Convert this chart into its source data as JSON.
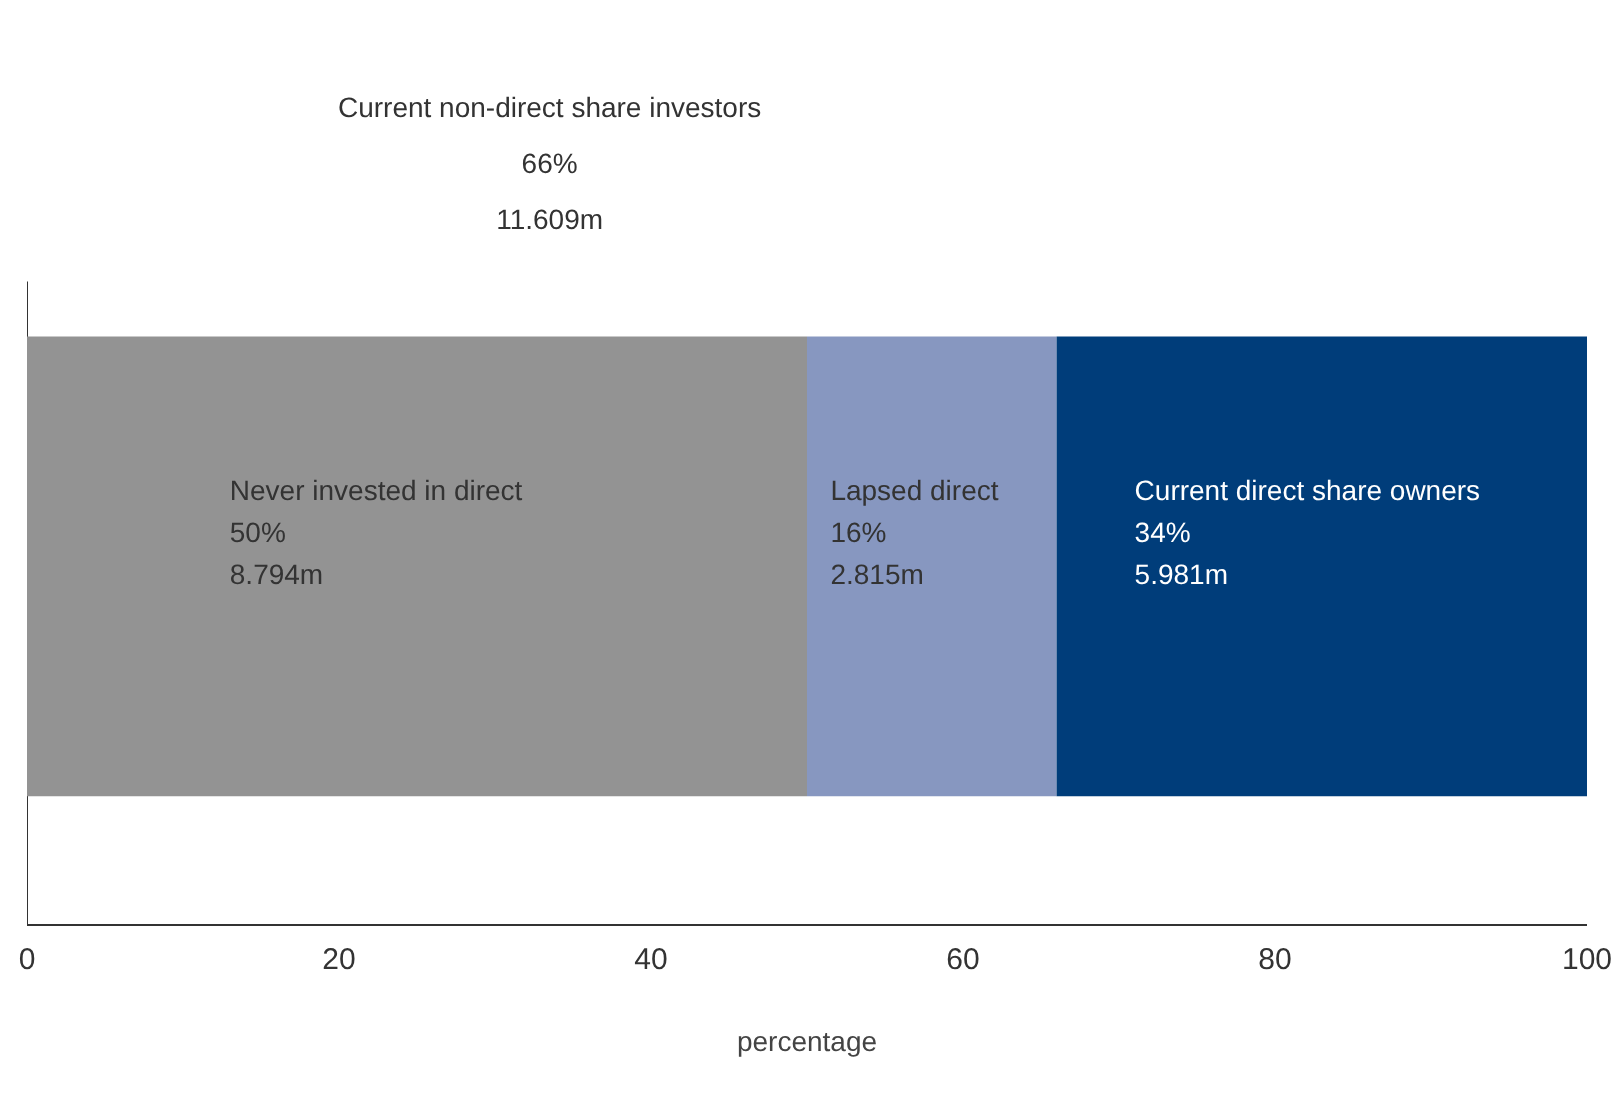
{
  "chart_data": {
    "type": "bar",
    "orientation": "horizontal",
    "stacked": true,
    "categories": [
      null
    ],
    "series": [
      {
        "name": "Never invested in direct",
        "color": "#939393",
        "values": [
          50
        ],
        "value_labels": [
          "50%\n8.794m"
        ]
      },
      {
        "name": "Lapsed direct",
        "color": "#8797c0",
        "values": [
          16
        ],
        "value_labels": [
          "16%\n2.815m"
        ]
      },
      {
        "name": "Current direct share owners",
        "color": "#003d7a",
        "values": [
          34
        ],
        "value_labels": [
          "34%\n5.981m"
        ]
      }
    ],
    "annotations": [
      "Current non-direct share investors\n66%\n11.609m"
    ],
    "xlabel": "percentage",
    "xlim": [
      0,
      100
    ],
    "xticks": [
      0,
      20,
      40,
      60,
      80,
      100
    ],
    "grid": false,
    "legend": false
  }
}
